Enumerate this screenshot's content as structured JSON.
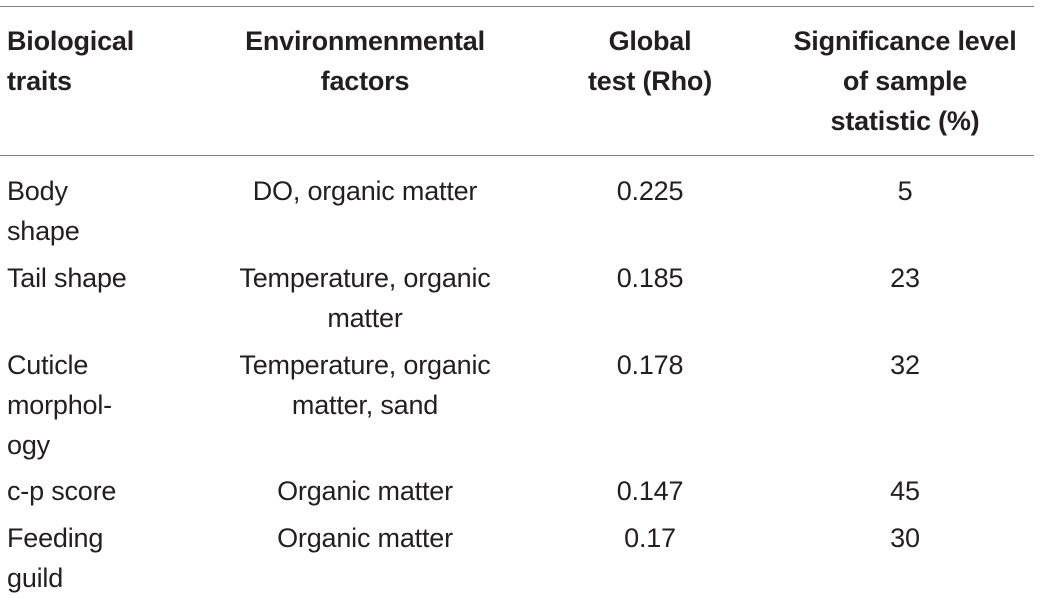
{
  "table": {
    "headers": [
      "Biological\ntraits",
      "Environmenmental\nfactors",
      "Global\ntest (Rho)",
      "Significance level\nof sample\nstatistic (%)"
    ],
    "rows": [
      {
        "trait": "Body\nshape",
        "factors": "DO, organic matter",
        "rho": "0.225",
        "significance": "5"
      },
      {
        "trait": "Tail shape",
        "factors": "Temperature, organic\nmatter",
        "rho": "0.185",
        "significance": "23"
      },
      {
        "trait": "Cuticle\nmorphol-\nogy",
        "factors": "Temperature, organic\nmatter, sand",
        "rho": "0.178",
        "significance": "32"
      },
      {
        "trait": "c-p score",
        "factors": "Organic matter",
        "rho": "0.147",
        "significance": "45"
      },
      {
        "trait": "Feeding\nguild",
        "factors": "Organic matter",
        "rho": "0.17",
        "significance": "30"
      }
    ]
  }
}
